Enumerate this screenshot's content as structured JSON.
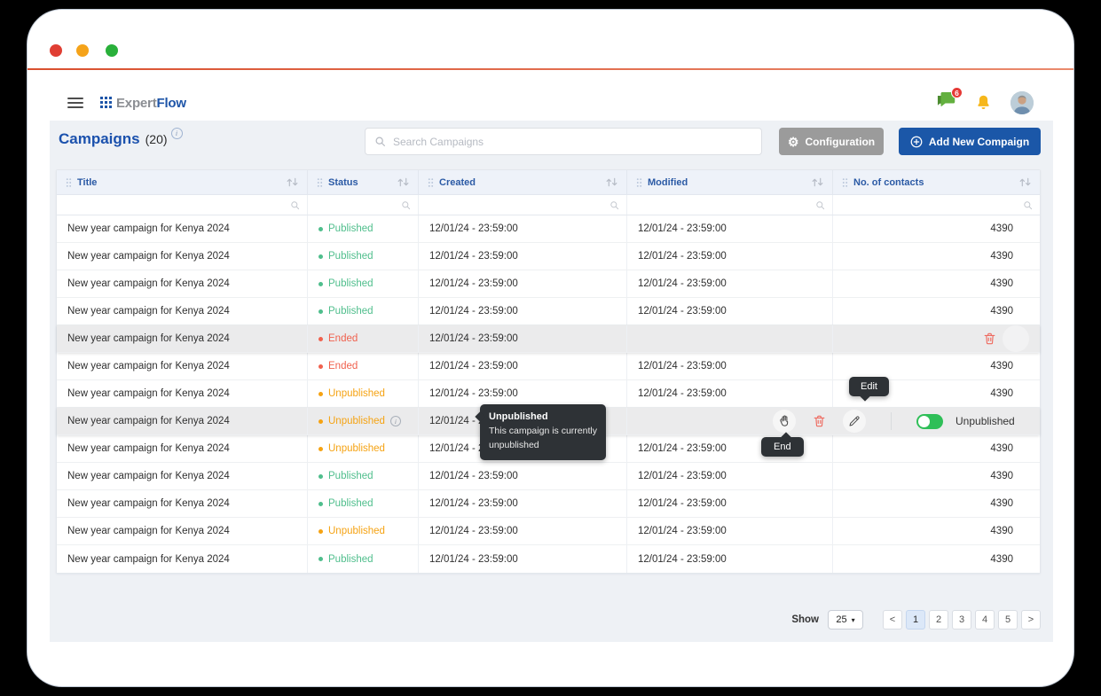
{
  "app_header": {
    "logo": {
      "text_primary": "Expert",
      "text_secondary": "Flow"
    },
    "chat_badge_count": "6"
  },
  "page": {
    "title": "Campaigns",
    "count": "(20)",
    "search_placeholder": "Search Campaigns",
    "configuration_label": "Configuration",
    "add_button_label": "Add New Compaign"
  },
  "table": {
    "columns": [
      {
        "key": "title",
        "label": "Title"
      },
      {
        "key": "status",
        "label": "Status"
      },
      {
        "key": "created",
        "label": "Created"
      },
      {
        "key": "modified",
        "label": "Modified"
      },
      {
        "key": "contacts",
        "label": "No. of contacts"
      }
    ],
    "status_colors": {
      "Published": "#4fbe8c",
      "Ended": "#f0614e",
      "Unpublished": "#f5a313"
    },
    "rows": [
      {
        "title": "New year campaign for Kenya 2024",
        "status": "Published",
        "created": "12/01/24 - 23:59:00",
        "modified": "12/01/24 - 23:59:00",
        "contacts": "4390"
      },
      {
        "title": "New year campaign for Kenya 2024",
        "status": "Published",
        "created": "12/01/24 - 23:59:00",
        "modified": "12/01/24 - 23:59:00",
        "contacts": "4390"
      },
      {
        "title": "New year campaign for Kenya 2024",
        "status": "Published",
        "created": "12/01/24 - 23:59:00",
        "modified": "12/01/24 - 23:59:00",
        "contacts": "4390"
      },
      {
        "title": "New year campaign for Kenya 2024",
        "status": "Published",
        "created": "12/01/24 - 23:59:00",
        "modified": "12/01/24 - 23:59:00",
        "contacts": "4390"
      },
      {
        "title": "New year campaign for Kenya 2024",
        "status": "Ended",
        "created": "12/01/24 - 23:59:00",
        "modified": "",
        "contacts": "",
        "highlighted": true,
        "layout": "delete"
      },
      {
        "title": "New year campaign for Kenya 2024",
        "status": "Ended",
        "created": "12/01/24 - 23:59:00",
        "modified": "12/01/24 - 23:59:00",
        "contacts": "4390"
      },
      {
        "title": "New year campaign for Kenya 2024",
        "status": "Unpublished",
        "created": "12/01/24 - 23:59:00",
        "modified": "12/01/24 - 23:59:00",
        "contacts": "4390"
      },
      {
        "title": "New year campaign for Kenya 2024",
        "status": "Unpublished",
        "created": "12/01/24 - 23:59:00",
        "modified": "",
        "contacts": "",
        "highlighted": true,
        "info_icon": true,
        "layout": "manage"
      },
      {
        "title": "New year campaign for Kenya 2024",
        "status": "Unpublished",
        "created": "12/01/24 - 23:59:00",
        "modified": "12/01/24 - 23:59:00",
        "contacts": "4390"
      },
      {
        "title": "New year campaign for Kenya 2024",
        "status": "Published",
        "created": "12/01/24 - 23:59:00",
        "modified": "12/01/24 - 23:59:00",
        "contacts": "4390"
      },
      {
        "title": "New year campaign for Kenya 2024",
        "status": "Published",
        "created": "12/01/24 - 23:59:00",
        "modified": "12/01/24 - 23:59:00",
        "contacts": "4390"
      },
      {
        "title": "New year campaign for Kenya 2024",
        "status": "Unpublished",
        "created": "12/01/24 - 23:59:00",
        "modified": "12/01/24 - 23:59:00",
        "contacts": "4390"
      },
      {
        "title": "New year campaign for Kenya 2024",
        "status": "Published",
        "created": "12/01/24 - 23:59:00",
        "modified": "12/01/24 - 23:59:00",
        "contacts": "4390"
      }
    ]
  },
  "row_actions": {
    "toggle_label": "Unpublished"
  },
  "tooltips": {
    "status": {
      "title": "Unpublished",
      "body": "This campaign is currently unpublished"
    },
    "edit": "Edit",
    "end": "End"
  },
  "pagination": {
    "show_label": "Show",
    "page_size": "25",
    "prev": "<",
    "next": ">",
    "pages": [
      "1",
      "2",
      "3",
      "4",
      "5"
    ],
    "active_page": "1"
  },
  "icons": {
    "logo": "grid-of-squares",
    "chat": "green-speech-bubbles",
    "bell": "amber-bell",
    "search": "magnifier",
    "configuration": "gear",
    "add": "plus-circle",
    "sort": "up-down-arrows",
    "column_drag": "six-dots",
    "delete": "trash",
    "end_campaign": "raised-hand",
    "edit": "pencil"
  }
}
